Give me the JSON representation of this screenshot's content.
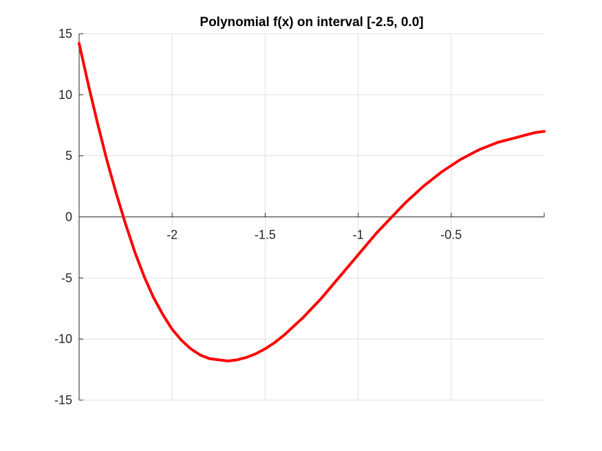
{
  "chart_data": {
    "type": "line",
    "title": "Polynomial f(x) on interval [-2.5, 0.0]",
    "xlabel": "",
    "ylabel": "",
    "xlim": [
      -2.5,
      0.0
    ],
    "ylim": [
      -15,
      15
    ],
    "x_ticks": [
      -2,
      -1.5,
      -1,
      -0.5
    ],
    "x_tick_labels": [
      "-2",
      "-1.5",
      "-1",
      "-0.5"
    ],
    "y_ticks": [
      15,
      10,
      5,
      0,
      -5,
      -10,
      -15
    ],
    "y_tick_labels": [
      "15",
      "10",
      "5",
      "0",
      "-5",
      "-10",
      "-15"
    ],
    "grid": true,
    "x_axis_at_y": 0,
    "series": [
      {
        "color": "#ff0000",
        "x": [
          -2.5,
          -2.45,
          -2.4,
          -2.35,
          -2.3,
          -2.25,
          -2.2,
          -2.15,
          -2.1,
          -2.05,
          -2.0,
          -1.95,
          -1.9,
          -1.85,
          -1.8,
          -1.75,
          -1.7,
          -1.65,
          -1.6,
          -1.55,
          -1.5,
          -1.45,
          -1.4,
          -1.35,
          -1.3,
          -1.25,
          -1.2,
          -1.15,
          -1.1,
          -1.05,
          -1.0,
          -0.95,
          -0.9,
          -0.85,
          -0.8,
          -0.75,
          -0.7,
          -0.65,
          -0.6,
          -0.55,
          -0.5,
          -0.45,
          -0.4,
          -0.35,
          -0.3,
          -0.25,
          -0.2,
          -0.15,
          -0.1,
          -0.05,
          0.0
        ],
        "values": [
          14.2,
          10.8,
          7.6,
          4.6,
          1.9,
          -0.6,
          -2.9,
          -4.9,
          -6.6,
          -8.0,
          -9.2,
          -10.1,
          -10.8,
          -11.3,
          -11.6,
          -11.7,
          -11.8,
          -11.7,
          -11.5,
          -11.2,
          -10.8,
          -10.3,
          -9.7,
          -9.0,
          -8.3,
          -7.5,
          -6.7,
          -5.8,
          -4.9,
          -4.0,
          -3.1,
          -2.2,
          -1.3,
          -0.5,
          0.3,
          1.1,
          1.8,
          2.5,
          3.1,
          3.7,
          4.2,
          4.7,
          5.1,
          5.5,
          5.8,
          6.1,
          6.3,
          6.5,
          6.7,
          6.9,
          7.0
        ]
      }
    ]
  }
}
